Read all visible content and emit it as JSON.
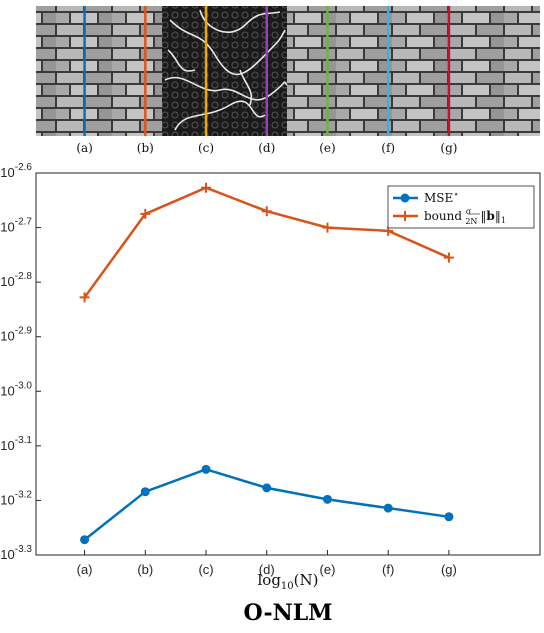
{
  "strip": {
    "description_labels": [
      "(a)",
      "(b)",
      "(c)",
      "(d)",
      "(e)",
      "(f)",
      "(g)"
    ],
    "marker_colors": [
      "#0a6fb8",
      "#e0541f",
      "#f0a800",
      "#9b3fc0",
      "#6db33f",
      "#39b3e6",
      "#c8102e"
    ]
  },
  "chart_data": {
    "type": "line",
    "categories": [
      "(a)",
      "(b)",
      "(c)",
      "(d)",
      "(e)",
      "(f)",
      "(g)"
    ],
    "x_positions": [
      1,
      2,
      3,
      4,
      5,
      6,
      7
    ],
    "y_scale": "log10",
    "ylim_exponent": [
      -3.3,
      -2.6
    ],
    "y_tick_exponents": [
      "-2.6",
      "-2.7",
      "-2.8",
      "-2.9",
      "-3.0",
      "-3.1",
      "-3.2",
      "-3.3"
    ],
    "xlabel_prefix": "log",
    "xlabel_sub": "10",
    "xlabel_suffix": "(N)",
    "legend_position": "top-right",
    "series": [
      {
        "name": "MSE*",
        "color": "#0072bd",
        "marker": "circle",
        "values_log10": [
          -3.272,
          -3.184,
          -3.143,
          -3.177,
          -3.198,
          -3.214,
          -3.23
        ]
      },
      {
        "name": "bound σ/2N ||b||₁",
        "color": "#d95319",
        "marker": "plus",
        "values_log10": [
          -2.828,
          -2.675,
          -2.627,
          -2.67,
          -2.7,
          -2.706,
          -2.755
        ]
      }
    ]
  },
  "footer": {
    "title": "O-NLM"
  }
}
